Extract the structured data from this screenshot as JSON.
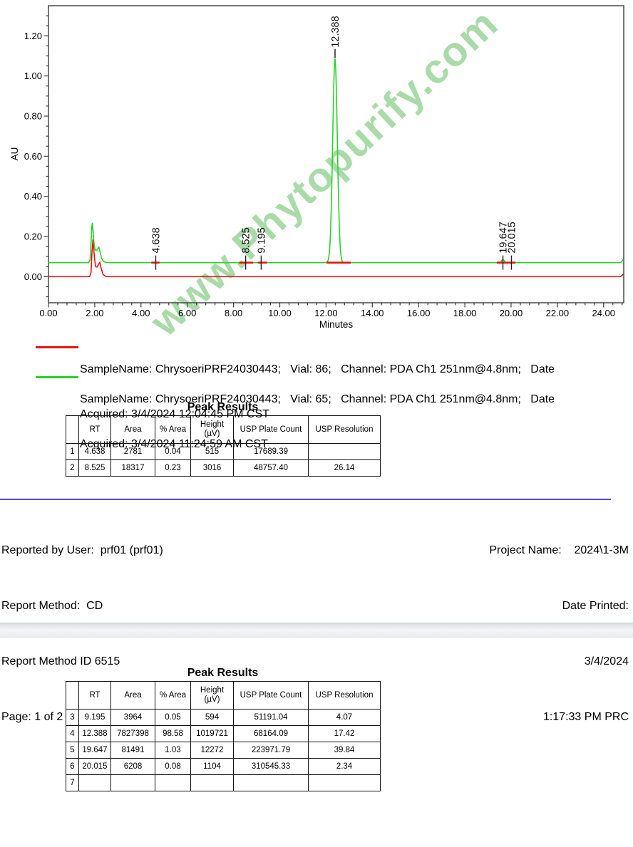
{
  "watermark": "www.Phytopurify.com",
  "chart_data": {
    "type": "line",
    "title": "",
    "xlabel": "Minutes",
    "ylabel": "AU",
    "xlim": [
      0,
      24.87
    ],
    "ylim": [
      -0.13,
      1.35
    ],
    "grid": false,
    "x_major_tick_step": 2,
    "x_minor_tick_step": 0.4,
    "y_major_tick_step": 0.2,
    "y_minor_tick_step": 0.05,
    "x_tick_labels": [
      "0.00",
      "2.00",
      "4.00",
      "6.00",
      "8.00",
      "10.00",
      "12.00",
      "14.00",
      "16.00",
      "18.00",
      "20.00",
      "22.00",
      "24.00"
    ],
    "y_tick_labels": [
      "0.00",
      "0.20",
      "0.40",
      "0.60",
      "0.80",
      "1.00",
      "1.20"
    ],
    "series": [
      {
        "name": "Vial 86 - PDA Ch1 251nm@4.8nm",
        "color": "#e81313",
        "baseline_au": 0.0,
        "solvent_front": [
          [
            1.78,
            0.0
          ],
          [
            1.84,
            0.02
          ],
          [
            1.88,
            0.12
          ],
          [
            1.92,
            0.185
          ],
          [
            1.95,
            0.15
          ],
          [
            1.99,
            0.09
          ],
          [
            2.04,
            0.05
          ],
          [
            2.1,
            0.048
          ],
          [
            2.16,
            0.06
          ],
          [
            2.22,
            0.071
          ],
          [
            2.28,
            0.04
          ],
          [
            2.36,
            0.012
          ],
          [
            2.46,
            0.002
          ],
          [
            2.6,
            0.0
          ]
        ],
        "peaks": [
          {
            "rt": 24.85,
            "height_au": 0.012,
            "sigma": 0.05
          }
        ]
      },
      {
        "name": "Vial 65 - PDA Ch1 251nm@4.8nm",
        "color": "#28d428",
        "baseline_au": 0.07,
        "solvent_front": [
          [
            1.74,
            0.07
          ],
          [
            1.8,
            0.085
          ],
          [
            1.85,
            0.19
          ],
          [
            1.88,
            0.255
          ],
          [
            1.9,
            0.268
          ],
          [
            1.93,
            0.23
          ],
          [
            1.97,
            0.16
          ],
          [
            2.02,
            0.135
          ],
          [
            2.07,
            0.128
          ],
          [
            2.13,
            0.14
          ],
          [
            2.18,
            0.147
          ],
          [
            2.24,
            0.118
          ],
          [
            2.3,
            0.09
          ],
          [
            2.38,
            0.076
          ],
          [
            2.48,
            0.071
          ],
          [
            2.6,
            0.07
          ]
        ],
        "peaks": [
          {
            "rt": 12.388,
            "height_au": 1.015,
            "sigma": 0.1
          },
          {
            "rt": 19.647,
            "height_au": 0.016,
            "sigma": 0.06
          },
          {
            "rt": 24.85,
            "height_au": 0.014,
            "sigma": 0.05
          }
        ]
      }
    ],
    "peak_annotations": [
      {
        "label": "4.638",
        "rt": 4.638,
        "marker": "baseline"
      },
      {
        "label": "8.525",
        "rt": 8.525,
        "marker": "baseline"
      },
      {
        "label": "9.195",
        "rt": 9.195,
        "marker": "baseline"
      },
      {
        "label": "12.388",
        "rt": 12.388,
        "marker": "apex",
        "apex_au": 1.085
      },
      {
        "label": "19.647",
        "rt": 19.647,
        "marker": "baseline"
      },
      {
        "label": "20.015",
        "rt": 20.015,
        "marker": "baseline"
      }
    ],
    "integration_marks": [
      [
        4.45,
        4.8
      ],
      [
        8.25,
        8.85
      ],
      [
        9.05,
        9.45
      ],
      [
        12.02,
        13.07
      ],
      [
        19.38,
        20.19
      ]
    ]
  },
  "legend": [
    {
      "color": "#e81313",
      "line1": "SampleName: ChrysoeriPRF24030443;   Vial: 86;   Channel: PDA Ch1 251nm@4.8nm;   Date",
      "line2": "Acquired: 3/4/2024 12:04:45 PM CST"
    },
    {
      "color": "#28d428",
      "line1": "SampleName: ChrysoeriPRF24030443;   Vial: 65;   Channel: PDA Ch1 251nm@4.8nm;   Date",
      "line2": "Acquired: 3/4/2024 11:24:59 AM CST"
    }
  ],
  "peak_table_1": {
    "title": "Peak Results",
    "headers": [
      [
        ""
      ],
      [
        "RT"
      ],
      [
        "Area"
      ],
      [
        "% Area"
      ],
      [
        "Height",
        "(µV)"
      ],
      [
        "USP Plate Count"
      ],
      [
        "USP Resolution"
      ]
    ],
    "rows": [
      [
        "1",
        "4.638",
        "2781",
        "0.04",
        "515",
        "17689.39",
        ""
      ],
      [
        "2",
        "8.525",
        "18317",
        "0.23",
        "3016",
        "48757.40",
        "26.14"
      ]
    ]
  },
  "peak_table_2": {
    "title": "Peak Results",
    "headers": [
      [
        ""
      ],
      [
        "RT"
      ],
      [
        "Area"
      ],
      [
        "% Area"
      ],
      [
        "Height",
        "(µV)"
      ],
      [
        "USP Plate Count"
      ],
      [
        "USP Resolution"
      ]
    ],
    "rows": [
      [
        "3",
        "9.195",
        "3964",
        "0.05",
        "594",
        "51191.04",
        "4.07"
      ],
      [
        "4",
        "12.388",
        "7827398",
        "98.58",
        "1019721",
        "68164.09",
        "17.42"
      ],
      [
        "5",
        "19.647",
        "81491",
        "1.03",
        "12272",
        "223971.79",
        "39.84"
      ],
      [
        "6",
        "20.015",
        "6208",
        "0.08",
        "1104",
        "310545.33",
        "2.34"
      ],
      [
        "7",
        "",
        "",
        "",
        "",
        "",
        ""
      ]
    ]
  },
  "footer": {
    "left": [
      "Reported by User:  prf01 (prf01)",
      "Report Method:  CD",
      "Report Method ID 6515",
      "Page: 1 of 2"
    ],
    "right": [
      "Project Name:    2024\\1-3M",
      "Date Printed:",
      "3/4/2024",
      "1:17:33 PM PRC"
    ]
  }
}
